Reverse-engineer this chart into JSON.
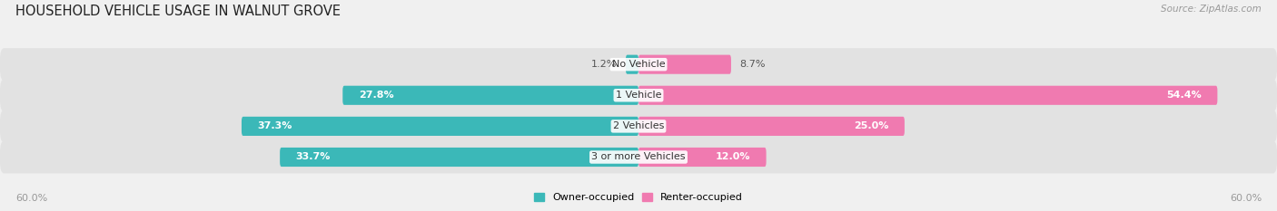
{
  "title": "HOUSEHOLD VEHICLE USAGE IN WALNUT GROVE",
  "source": "Source: ZipAtlas.com",
  "categories": [
    "No Vehicle",
    "1 Vehicle",
    "2 Vehicles",
    "3 or more Vehicles"
  ],
  "owner_values": [
    1.2,
    27.8,
    37.3,
    33.7
  ],
  "renter_values": [
    8.7,
    54.4,
    25.0,
    12.0
  ],
  "owner_color": "#3bb8b8",
  "renter_color": "#f07ab0",
  "owner_color_light": "#a8dede",
  "renter_color_light": "#f9c0d8",
  "axis_max": 60.0,
  "axis_label_left": "60.0%",
  "axis_label_right": "60.0%",
  "background_color": "#f0f0f0",
  "bar_background": "#e2e2e2",
  "title_fontsize": 10.5,
  "source_fontsize": 7.5,
  "label_fontsize": 8.0,
  "category_fontsize": 8.0,
  "bar_height": 0.62,
  "owner_label_inside_threshold": 5.0,
  "renter_label_inside_threshold": 10.0
}
